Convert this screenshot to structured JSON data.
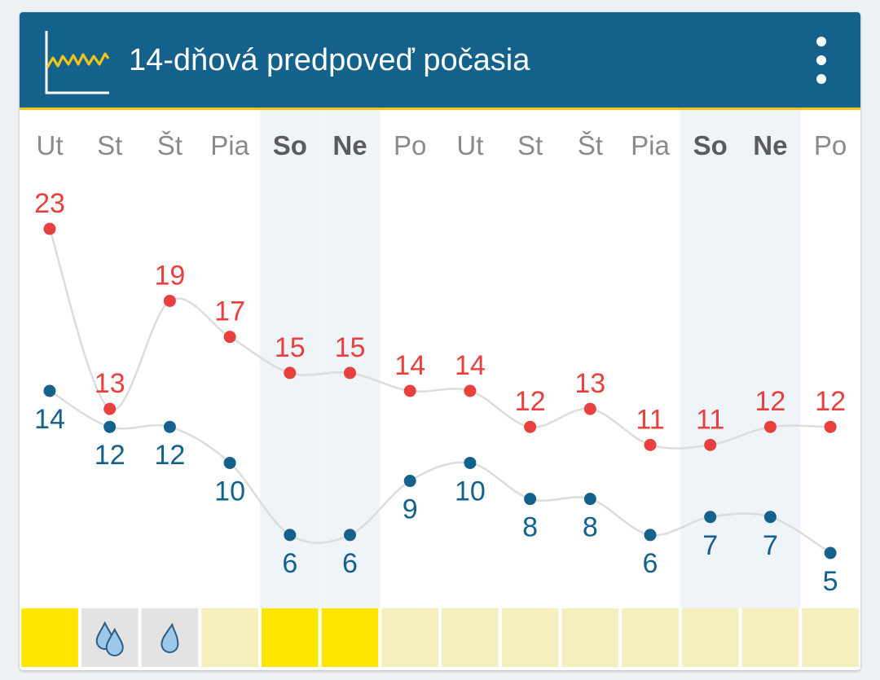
{
  "header": {
    "title": "14-dňová predpoveď počasia",
    "icon": "line-chart-icon",
    "menu_icon": "more-vertical-icon"
  },
  "colors": {
    "header_bg": "#14628c",
    "accent_line": "#f0c419",
    "high_temp": "#e8403e",
    "low_temp": "#14628c",
    "weekend_bg": "#eef4f8",
    "connector_line": "#dcdcdc",
    "sunny": "#ffe600",
    "partly": "#f6efbd",
    "rain": "#e3e3e3"
  },
  "chart_data": {
    "type": "line",
    "categories": [
      "Ut",
      "St",
      "Št",
      "Pia",
      "So",
      "Ne",
      "Po",
      "Ut",
      "St",
      "Št",
      "Pia",
      "So",
      "Ne",
      "Po"
    ],
    "weekend": [
      false,
      false,
      false,
      false,
      true,
      true,
      false,
      false,
      false,
      false,
      false,
      true,
      true,
      false
    ],
    "series": [
      {
        "values": [
          23,
          13,
          19,
          17,
          15,
          15,
          14,
          14,
          12,
          13,
          11,
          11,
          12,
          12
        ]
      },
      {
        "values": [
          14,
          12,
          12,
          10,
          6,
          6,
          9,
          10,
          8,
          8,
          6,
          7,
          7,
          5
        ]
      }
    ],
    "ylim": [
      5,
      23
    ],
    "grid": false
  },
  "weather_strip": [
    {
      "condition": "sunny",
      "icon": ""
    },
    {
      "condition": "rain",
      "icon": "rain-drops-icon"
    },
    {
      "condition": "rain",
      "icon": "rain-drop-icon"
    },
    {
      "condition": "partly",
      "icon": ""
    },
    {
      "condition": "sunny",
      "icon": ""
    },
    {
      "condition": "sunny",
      "icon": ""
    },
    {
      "condition": "partly",
      "icon": ""
    },
    {
      "condition": "partly",
      "icon": ""
    },
    {
      "condition": "partly",
      "icon": ""
    },
    {
      "condition": "partly",
      "icon": ""
    },
    {
      "condition": "partly",
      "icon": ""
    },
    {
      "condition": "partly",
      "icon": ""
    },
    {
      "condition": "partly",
      "icon": ""
    },
    {
      "condition": "partly",
      "icon": ""
    }
  ]
}
